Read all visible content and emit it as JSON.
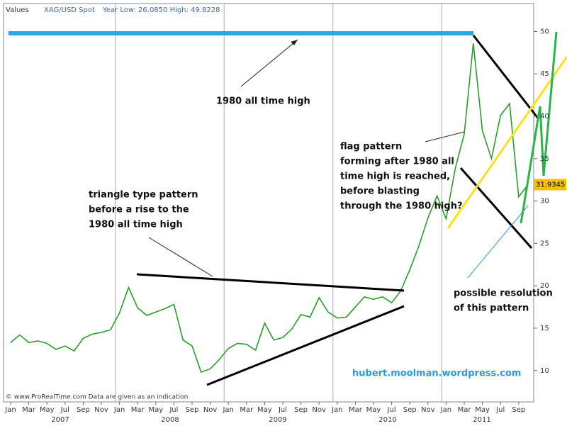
{
  "chart_data": {
    "type": "line",
    "header": "Values",
    "symbol": "XAG/USD Spot",
    "year_range": "Year Low: 26.0850 High: 49.8228",
    "categories": [
      "Jan",
      null,
      "Mar",
      null,
      "May",
      null,
      "Jul",
      null,
      "Sep",
      null,
      "Nov",
      null,
      "Jan",
      null,
      "Mar",
      null,
      "May",
      null,
      "Jul",
      null,
      "Sep",
      null,
      "Nov",
      null,
      "Jan",
      null,
      "Mar",
      null,
      "May",
      null,
      "Jul",
      null,
      "Sep",
      null,
      "Nov",
      null,
      "Jan",
      null,
      "Mar",
      null,
      "May",
      null,
      "Jul",
      null,
      "Sep",
      null,
      "Nov",
      null,
      "Jan",
      null,
      "Mar",
      null,
      "May",
      null,
      "Jul",
      null,
      "Sep",
      null
    ],
    "years": [
      "2007",
      "2008",
      "2009",
      "2010",
      "2011"
    ],
    "series": [
      {
        "name": "XAG/USD Spot",
        "color": "#2e9a2e",
        "values": [
          13.3,
          14.2,
          13.3,
          13.5,
          13.2,
          12.5,
          12.9,
          12.3,
          13.8,
          14.3,
          14.5,
          14.8,
          16.8,
          19.8,
          17.4,
          16.5,
          16.9,
          17.3,
          17.8,
          13.6,
          12.9,
          9.8,
          10.2,
          11.3,
          12.6,
          13.2,
          13.1,
          12.4,
          15.6,
          13.6,
          13.9,
          14.9,
          16.6,
          16.3,
          18.6,
          16.9,
          16.2,
          16.3,
          17.5,
          18.7,
          18.4,
          18.7,
          18.0,
          19.4,
          21.9,
          24.7,
          28.0,
          30.6,
          27.9,
          33.8,
          37.9,
          48.6,
          38.3,
          35.0,
          40.1,
          41.5,
          30.5,
          31.9
        ]
      }
    ],
    "last_price": 31.9345,
    "ylim": [
      6.3,
      53.3
    ],
    "yticks": [
      10,
      15,
      20,
      25,
      30,
      35,
      40,
      45,
      50
    ],
    "annotations": {
      "high": "1980 all time high",
      "triangle": [
        "triangle type pattern",
        "before a rise to the",
        "1980 all time high"
      ],
      "flag": [
        "flag pattern",
        "forming after 1980 all",
        "time high is reached,",
        "before blasting",
        "through the 1980 high?"
      ],
      "resolution": [
        "possible resolution",
        "of this pattern"
      ],
      "site": "hubert.moolman.wordpress.com"
    },
    "credit": "© www.ProRealTime.com Data are given as an indication"
  }
}
